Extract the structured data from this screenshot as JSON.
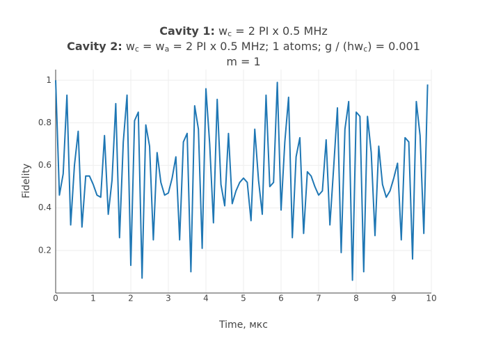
{
  "chart_data": {
    "type": "line",
    "title": [
      [
        {
          "text": "Cavity 1:",
          "style": "bold"
        },
        {
          "text": " w",
          "style": "normal"
        },
        {
          "text": "c",
          "style": "sub"
        },
        {
          "text": " = 2 PI x 0.5 MHz",
          "style": "normal"
        }
      ],
      [
        {
          "text": "Cavity 2:",
          "style": "bold"
        },
        {
          "text": " w",
          "style": "normal"
        },
        {
          "text": "c",
          "style": "sub"
        },
        {
          "text": " = w",
          "style": "normal"
        },
        {
          "text": "a",
          "style": "sub"
        },
        {
          "text": " = 2 PI x 0.5 MHz; 1 atoms; g / (hw",
          "style": "normal"
        },
        {
          "text": "c",
          "style": "sub"
        },
        {
          "text": ") = 0.001",
          "style": "normal"
        }
      ],
      [
        {
          "text": "m = 1",
          "style": "normal"
        }
      ]
    ],
    "x_label": "Time, мкс",
    "y_label": "Fidelity",
    "color": "#1f77b4",
    "grid": true,
    "xlim": [
      0,
      10
    ],
    "xticks": [
      0,
      1,
      2,
      3,
      4,
      5,
      6,
      7,
      8,
      9,
      10
    ],
    "ylim": [
      0,
      1.05
    ],
    "yticks": [
      0.2,
      0.4,
      0.6,
      0.8,
      1
    ],
    "x": [
      0,
      0.1,
      0.2,
      0.3,
      0.4,
      0.5,
      0.6,
      0.7,
      0.8,
      0.9,
      1,
      1.1,
      1.2,
      1.3,
      1.4,
      1.5,
      1.6,
      1.7,
      1.8,
      1.9,
      2,
      2.1,
      2.2,
      2.3,
      2.4,
      2.5,
      2.6,
      2.7,
      2.8,
      2.9,
      3,
      3.1,
      3.2,
      3.3,
      3.4,
      3.5,
      3.6,
      3.7,
      3.8,
      3.9,
      4,
      4.1,
      4.2,
      4.3,
      4.4,
      4.5,
      4.6,
      4.7,
      4.8,
      4.9,
      5,
      5.1,
      5.2,
      5.3,
      5.4,
      5.5,
      5.6,
      5.7,
      5.8,
      5.9,
      6,
      6.1,
      6.2,
      6.3,
      6.4,
      6.5,
      6.6,
      6.7,
      6.8,
      6.9,
      7,
      7.1,
      7.2,
      7.3,
      7.4,
      7.5,
      7.6,
      7.7,
      7.8,
      7.9,
      8,
      8.1,
      8.2,
      8.3,
      8.4,
      8.5,
      8.6,
      8.7,
      8.8,
      8.9,
      9,
      9.1,
      9.2,
      9.3,
      9.4,
      9.5,
      9.6,
      9.7,
      9.8,
      9.9
    ],
    "values": [
      1.0,
      0.46,
      0.56,
      0.93,
      0.32,
      0.6,
      0.76,
      0.31,
      0.55,
      0.55,
      0.51,
      0.46,
      0.45,
      0.74,
      0.37,
      0.53,
      0.89,
      0.26,
      0.71,
      0.93,
      0.13,
      0.81,
      0.85,
      0.07,
      0.79,
      0.69,
      0.25,
      0.66,
      0.52,
      0.46,
      0.47,
      0.54,
      0.64,
      0.25,
      0.71,
      0.75,
      0.1,
      0.88,
      0.77,
      0.21,
      0.96,
      0.7,
      0.33,
      0.91,
      0.51,
      0.41,
      0.75,
      0.42,
      0.48,
      0.52,
      0.54,
      0.52,
      0.34,
      0.77,
      0.53,
      0.37,
      0.93,
      0.5,
      0.52,
      0.99,
      0.39,
      0.71,
      0.92,
      0.26,
      0.64,
      0.73,
      0.28,
      0.57,
      0.55,
      0.5,
      0.46,
      0.48,
      0.72,
      0.32,
      0.59,
      0.87,
      0.19,
      0.77,
      0.9,
      0.06,
      0.85,
      0.83,
      0.1,
      0.83,
      0.66,
      0.27,
      0.69,
      0.51,
      0.45,
      0.48,
      0.54,
      0.61,
      0.25,
      0.73,
      0.71,
      0.16,
      0.9,
      0.74,
      0.28,
      0.98
    ]
  }
}
